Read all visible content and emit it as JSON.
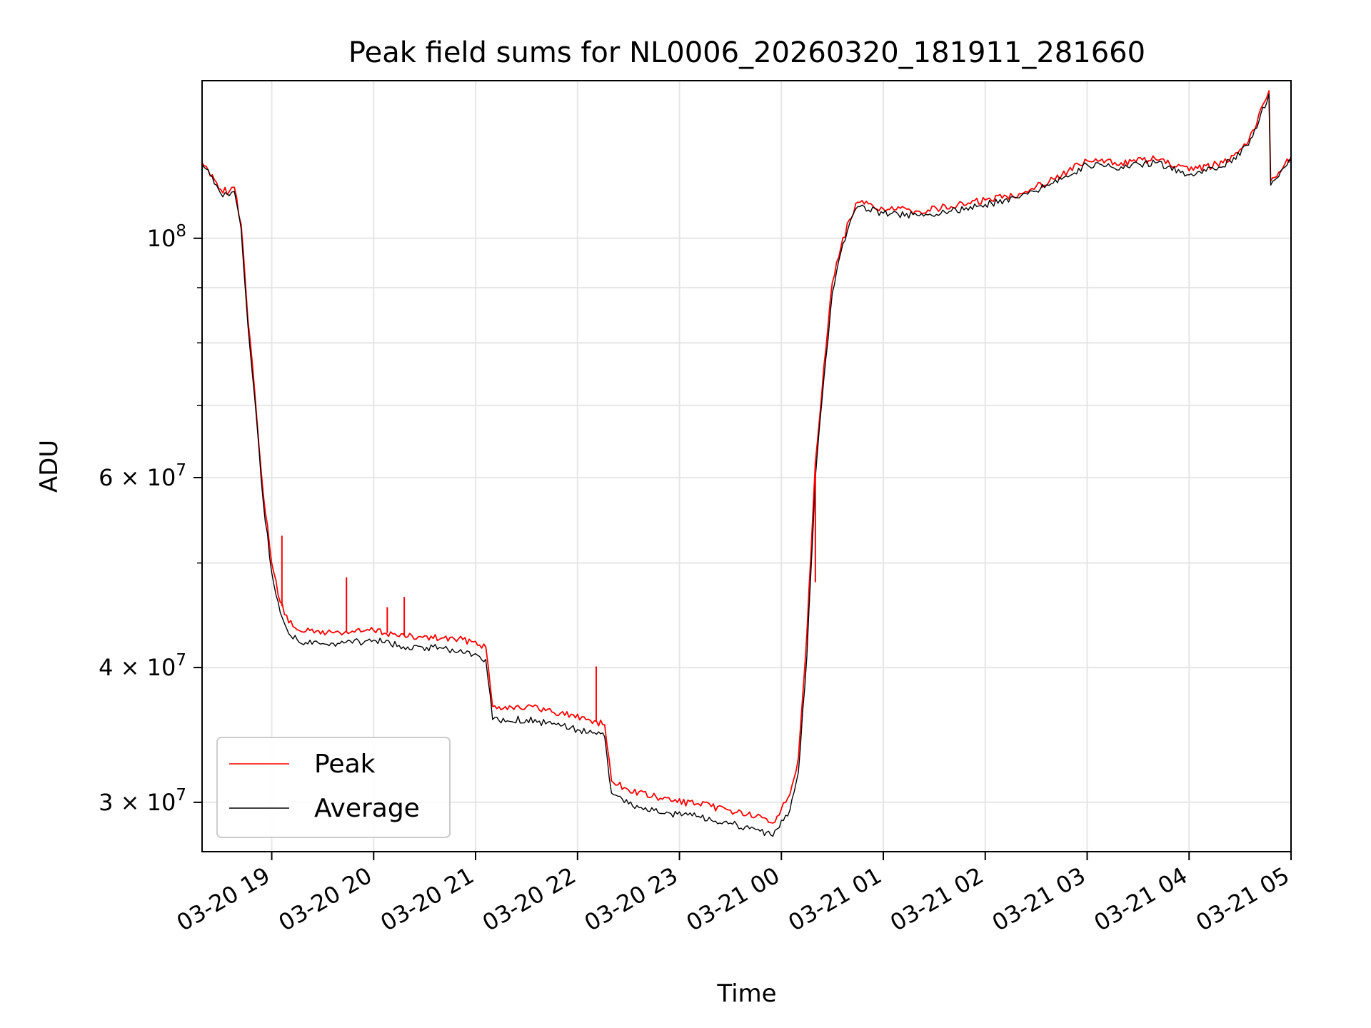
{
  "chart_data": {
    "type": "line",
    "title": "Peak field sums for NL0006_20260320_181911_281660",
    "xlabel": "Time",
    "ylabel": "ADU",
    "x_axis": {
      "kind": "time",
      "start": "03-20 18:19",
      "end": "03-21 05:00",
      "tick_labels": [
        "03-20 19",
        "03-20 20",
        "03-20 21",
        "03-20 22",
        "03-20 23",
        "03-21 00",
        "03-21 01",
        "03-21 02",
        "03-21 03",
        "03-21 04",
        "03-21 05"
      ],
      "tick_label_rotation_deg": 30
    },
    "y_axis": {
      "scale": "log",
      "ylim": [
        27000000,
        140000000
      ],
      "major_tick_values": [
        30000000,
        40000000,
        60000000,
        100000000
      ],
      "major_tick_labels": [
        {
          "base": "3 × 10",
          "exp": "7"
        },
        {
          "base": "4 × 10",
          "exp": "7"
        },
        {
          "base": "6 × 10",
          "exp": "7"
        },
        {
          "base": "10",
          "exp": "8"
        }
      ],
      "minor_tick_values": [
        50000000,
        70000000,
        80000000,
        90000000
      ]
    },
    "grid": true,
    "legend": {
      "placement": "lower-left",
      "entries": [
        "Peak",
        "Average"
      ]
    },
    "series": [
      {
        "name": "Peak",
        "color": "#ff0000",
        "points": [
          [
            "03-20 18:19",
            117500000
          ],
          [
            "03-20 18:25",
            114500000
          ],
          [
            "03-20 18:30",
            111000000
          ],
          [
            "03-20 18:35",
            110500000
          ],
          [
            "03-20 18:38",
            111500000
          ],
          [
            "03-20 18:42",
            103000000
          ],
          [
            "03-20 18:46",
            84000000
          ],
          [
            "03-20 18:50",
            72000000
          ],
          [
            "03-20 18:55",
            58000000
          ],
          [
            "03-20 19:00",
            50000000
          ],
          [
            "03-20 19:05",
            46000000
          ],
          [
            "03-20 19:10",
            44000000
          ],
          [
            "03-20 19:20",
            43200000
          ],
          [
            "03-20 19:40",
            43100000
          ],
          [
            "03-20 20:00",
            43300000
          ],
          [
            "03-20 20:20",
            42700000
          ],
          [
            "03-20 20:40",
            42600000
          ],
          [
            "03-20 21:00",
            42300000
          ],
          [
            "03-20 21:06",
            41800000
          ],
          [
            "03-20 21:10",
            36800000
          ],
          [
            "03-20 21:30",
            36800000
          ],
          [
            "03-20 21:50",
            36300000
          ],
          [
            "03-20 22:10",
            35700000
          ],
          [
            "03-20 22:16",
            35400000
          ],
          [
            "03-20 22:20",
            31400000
          ],
          [
            "03-20 22:30",
            30800000
          ],
          [
            "03-20 22:50",
            30200000
          ],
          [
            "03-20 23:10",
            29900000
          ],
          [
            "03-20 23:30",
            29500000
          ],
          [
            "03-20 23:45",
            29100000
          ],
          [
            "03-20 23:55",
            28700000
          ],
          [
            "03-21 00:05",
            30500000
          ],
          [
            "03-21 00:10",
            33000000
          ],
          [
            "03-21 00:15",
            43000000
          ],
          [
            "03-21 00:20",
            62000000
          ],
          [
            "03-21 00:25",
            76000000
          ],
          [
            "03-21 00:30",
            91000000
          ],
          [
            "03-21 00:35",
            98000000
          ],
          [
            "03-21 00:40",
            104000000
          ],
          [
            "03-21 00:45",
            108000000
          ],
          [
            "03-21 01:00",
            106500000
          ],
          [
            "03-21 01:20",
            106000000
          ],
          [
            "03-21 01:40",
            107000000
          ],
          [
            "03-21 02:00",
            108500000
          ],
          [
            "03-21 02:20",
            110000000
          ],
          [
            "03-21 02:40",
            113500000
          ],
          [
            "03-21 03:00",
            118000000
          ],
          [
            "03-21 03:20",
            117500000
          ],
          [
            "03-21 03:40",
            118500000
          ],
          [
            "03-21 04:00",
            115500000
          ],
          [
            "03-21 04:20",
            117500000
          ],
          [
            "03-21 04:35",
            123000000
          ],
          [
            "03-21 04:47",
            137000000
          ],
          [
            "03-21 04:48",
            113000000
          ],
          [
            "03-21 05:00",
            119000000
          ]
        ]
      },
      {
        "name": "Average",
        "color": "#000000",
        "points": [
          [
            "03-20 18:19",
            117000000
          ],
          [
            "03-20 18:25",
            114000000
          ],
          [
            "03-20 18:30",
            110000000
          ],
          [
            "03-20 18:35",
            109500000
          ],
          [
            "03-20 18:38",
            110500000
          ],
          [
            "03-20 18:42",
            102000000
          ],
          [
            "03-20 18:46",
            83000000
          ],
          [
            "03-20 18:50",
            71000000
          ],
          [
            "03-20 18:55",
            57000000
          ],
          [
            "03-20 19:00",
            49000000
          ],
          [
            "03-20 19:05",
            45000000
          ],
          [
            "03-20 19:10",
            43000000
          ],
          [
            "03-20 19:20",
            42200000
          ],
          [
            "03-20 19:40",
            42100000
          ],
          [
            "03-20 20:00",
            42400000
          ],
          [
            "03-20 20:20",
            41800000
          ],
          [
            "03-20 20:40",
            41700000
          ],
          [
            "03-20 21:00",
            41200000
          ],
          [
            "03-20 21:06",
            40700000
          ],
          [
            "03-20 21:10",
            35800000
          ],
          [
            "03-20 21:30",
            35800000
          ],
          [
            "03-20 21:50",
            35300000
          ],
          [
            "03-20 22:10",
            34800000
          ],
          [
            "03-20 22:16",
            34500000
          ],
          [
            "03-20 22:20",
            30600000
          ],
          [
            "03-20 22:30",
            29900000
          ],
          [
            "03-20 22:50",
            29300000
          ],
          [
            "03-20 23:10",
            29100000
          ],
          [
            "03-20 23:30",
            28700000
          ],
          [
            "03-20 23:45",
            28300000
          ],
          [
            "03-20 23:55",
            27900000
          ],
          [
            "03-21 00:05",
            29500000
          ],
          [
            "03-21 00:10",
            32000000
          ],
          [
            "03-21 00:15",
            41000000
          ],
          [
            "03-21 00:20",
            60000000
          ],
          [
            "03-21 00:25",
            74000000
          ],
          [
            "03-21 00:30",
            89000000
          ],
          [
            "03-21 00:35",
            97000000
          ],
          [
            "03-21 00:40",
            103000000
          ],
          [
            "03-21 00:45",
            107000000
          ],
          [
            "03-21 01:00",
            105500000
          ],
          [
            "03-21 01:20",
            105000000
          ],
          [
            "03-21 01:40",
            106000000
          ],
          [
            "03-21 02:00",
            107500000
          ],
          [
            "03-21 02:20",
            109000000
          ],
          [
            "03-21 02:40",
            112500000
          ],
          [
            "03-21 03:00",
            117000000
          ],
          [
            "03-21 03:20",
            116500000
          ],
          [
            "03-21 03:40",
            117500000
          ],
          [
            "03-21 04:00",
            114500000
          ],
          [
            "03-21 04:20",
            116500000
          ],
          [
            "03-21 04:35",
            122000000
          ],
          [
            "03-21 04:47",
            136000000
          ],
          [
            "03-21 04:48",
            112000000
          ],
          [
            "03-21 05:00",
            118000000
          ]
        ]
      }
    ],
    "spikes": [
      {
        "series": "Peak",
        "x": "03-20 19:06",
        "y": 53000000
      },
      {
        "series": "Peak",
        "x": "03-20 19:44",
        "y": 48500000
      },
      {
        "series": "Peak",
        "x": "03-20 20:08",
        "y": 45500000
      },
      {
        "series": "Peak",
        "x": "03-20 20:18",
        "y": 46500000
      },
      {
        "series": "Peak",
        "x": "03-20 22:11",
        "y": 40100000
      },
      {
        "series": "Peak",
        "x": "03-21 00:20",
        "y": 48000000
      }
    ]
  }
}
